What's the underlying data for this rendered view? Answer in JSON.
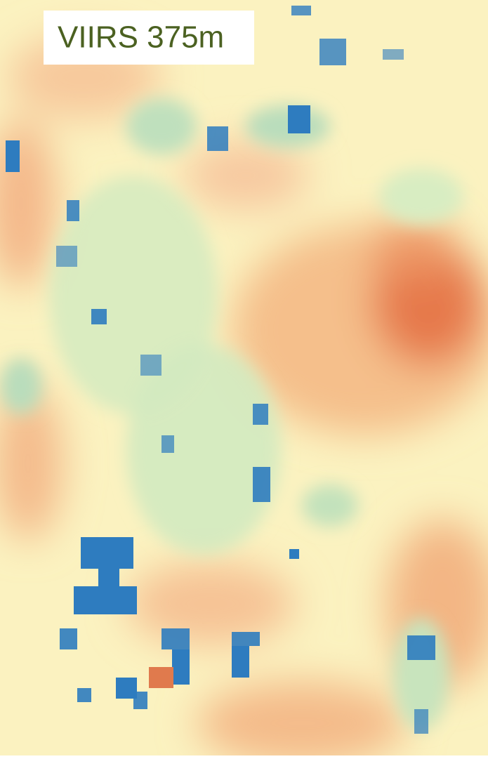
{
  "label": "VIIRS 375m"
}
